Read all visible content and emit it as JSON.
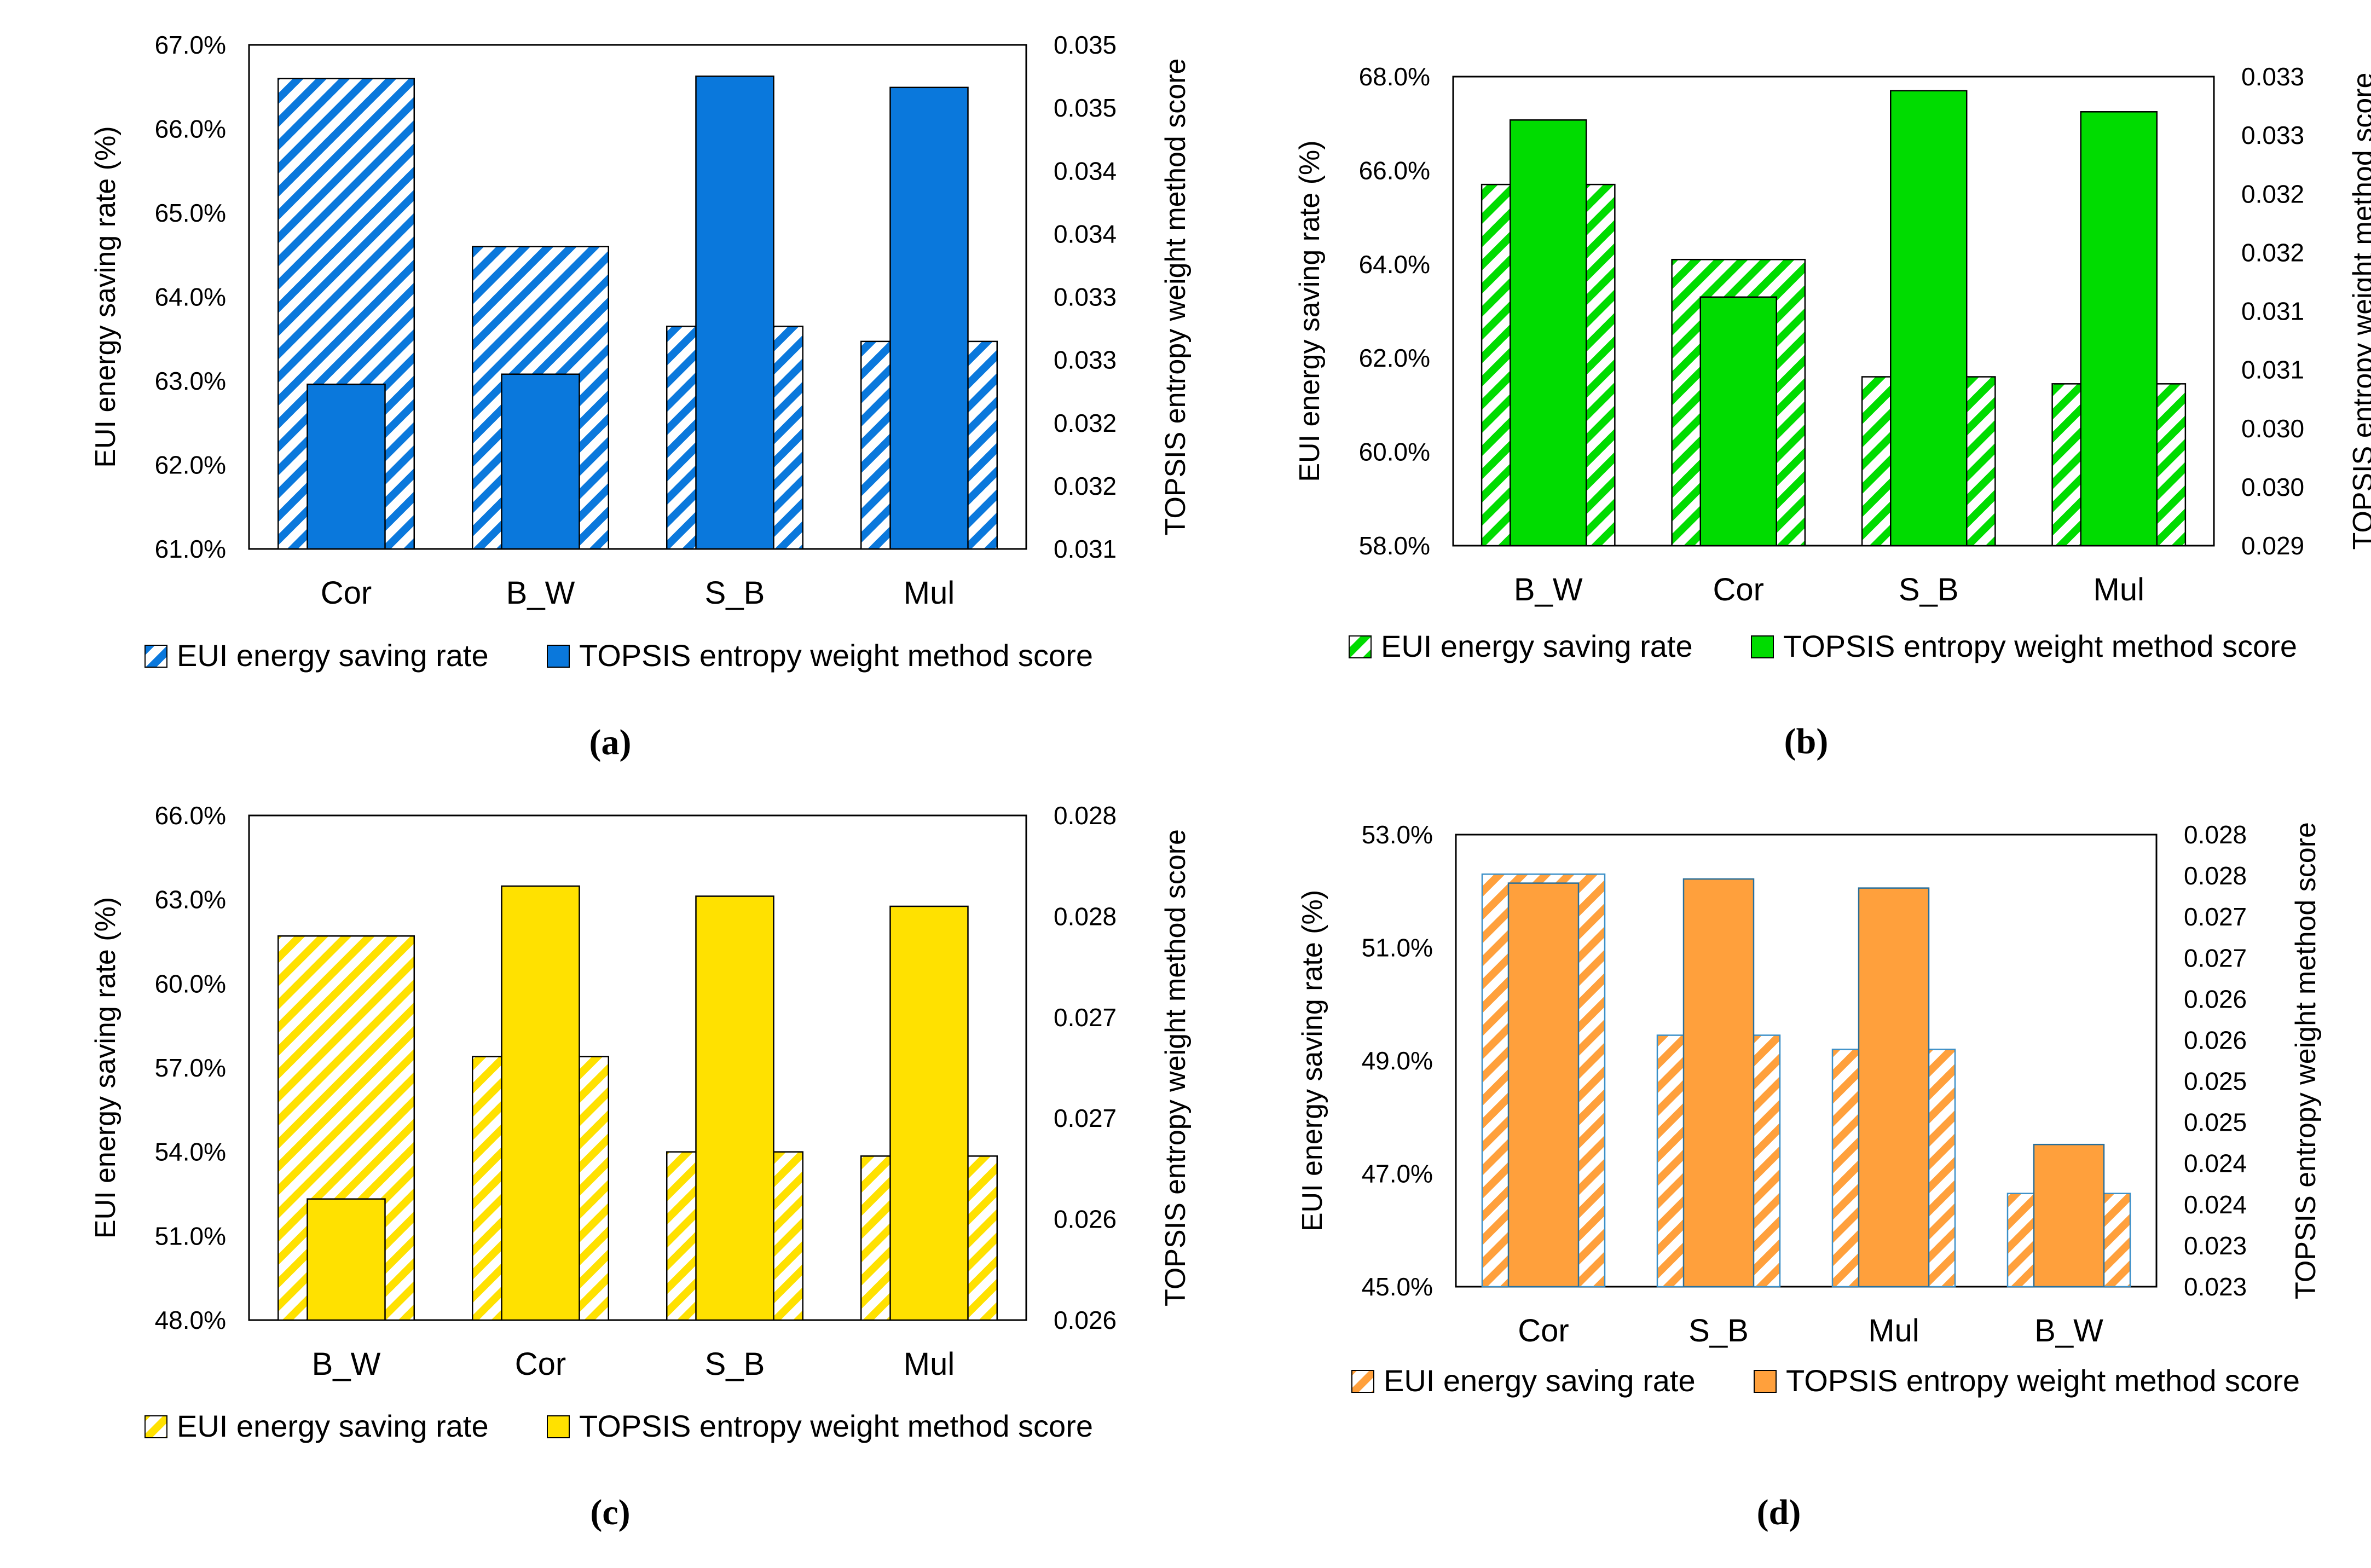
{
  "chart_data": [
    {
      "type": "bar",
      "panel_label": "(a)",
      "categories": [
        "Cor",
        "B_W",
        "S_B",
        "Mul"
      ],
      "color": "#0a78dc",
      "series": [
        {
          "name": "EUI energy saving rate",
          "axis": "left",
          "style": "hatched",
          "values": [
            66.6,
            64.6,
            63.65,
            63.47
          ]
        },
        {
          "name": "TOPSIS entropy weight method score",
          "axis": "right",
          "style": "solid",
          "values": [
            0.03247,
            0.03256,
            0.03522,
            0.03512
          ]
        }
      ],
      "ylabel": "EUI energy saving rate (%)",
      "y2label": "TOPSIS entropy weight method score",
      "ylim": [
        61,
        67
      ],
      "yticks": [
        "61.0%",
        "62.0%",
        "63.0%",
        "64.0%",
        "65.0%",
        "66.0%",
        "67.0%"
      ],
      "y2lim": [
        0.031,
        0.0355
      ],
      "y2ticks": [
        "0.031",
        "0.032",
        "0.032",
        "0.033",
        "0.033",
        "0.034",
        "0.034",
        "0.035",
        "0.035"
      ],
      "legend": "bottom"
    },
    {
      "type": "bar",
      "panel_label": "(b)",
      "categories": [
        "B_W",
        "Cor",
        "S_B",
        "Mul"
      ],
      "color": "#00dc00",
      "series": [
        {
          "name": "EUI energy saving rate",
          "axis": "left",
          "style": "hatched",
          "values": [
            65.7,
            64.1,
            61.6,
            61.45
          ]
        },
        {
          "name": "TOPSIS entropy weight method score",
          "axis": "right",
          "style": "solid",
          "values": [
            0.03263,
            0.03112,
            0.03288,
            0.0327
          ]
        }
      ],
      "ylabel": "EUI energy saving rate (%)",
      "y2label": "TOPSIS entropy weight method score",
      "ylim": [
        58,
        68
      ],
      "yticks": [
        "58.0%",
        "60.0%",
        "62.0%",
        "64.0%",
        "66.0%",
        "68.0%"
      ],
      "y2lim": [
        0.029,
        0.033
      ],
      "y2ticks": [
        "0.029",
        "0.030",
        "0.030",
        "0.031",
        "0.031",
        "0.032",
        "0.032",
        "0.033",
        "0.033"
      ],
      "legend": "bottom"
    },
    {
      "type": "bar",
      "panel_label": "(c)",
      "categories": [
        "B_W",
        "Cor",
        "S_B",
        "Mul"
      ],
      "color": "#ffe100",
      "series": [
        {
          "name": "EUI energy saving rate",
          "axis": "left",
          "style": "hatched",
          "values": [
            61.7,
            57.4,
            54.0,
            53.85
          ]
        },
        {
          "name": "TOPSIS entropy weight method score",
          "axis": "right",
          "style": "solid",
          "values": [
            0.0264,
            0.02795,
            0.0279,
            0.02785
          ]
        }
      ],
      "ylabel": "EUI energy saving rate (%)",
      "y2label": "TOPSIS entropy weight method score",
      "ylim": [
        48,
        66
      ],
      "yticks": [
        "48.0%",
        "51.0%",
        "54.0%",
        "57.0%",
        "60.0%",
        "63.0%",
        "66.0%"
      ],
      "y2lim": [
        0.0258,
        0.0283
      ],
      "y2ticks": [
        "0.026",
        "0.026",
        "0.027",
        "0.027",
        "0.028",
        "0.028"
      ],
      "legend": "bottom"
    },
    {
      "type": "bar",
      "panel_label": "(d)",
      "categories": [
        "Cor",
        "S_B",
        "Mul",
        "B_W"
      ],
      "color": "#ffa03c",
      "series": [
        {
          "name": "EUI energy saving rate",
          "axis": "left",
          "style": "hatched",
          "values": [
            52.3,
            49.45,
            49.2,
            46.65
          ]
        },
        {
          "name": "TOPSIS entropy weight method score",
          "axis": "right",
          "style": "solid",
          "values": [
            0.02791,
            0.02796,
            0.02785,
            0.02473
          ]
        }
      ],
      "ylabel": "EUI energy saving rate (%)",
      "y2label": "TOPSIS entropy weight method score",
      "ylim": [
        45,
        53
      ],
      "yticks": [
        "45.0%",
        "47.0%",
        "49.0%",
        "51.0%",
        "53.0%"
      ],
      "y2lim": [
        0.023,
        0.0285
      ],
      "y2ticks": [
        "0.023",
        "0.023",
        "0.024",
        "0.024",
        "0.025",
        "0.025",
        "0.026",
        "0.026",
        "0.027",
        "0.027",
        "0.028",
        "0.028"
      ],
      "legend": "bottom"
    }
  ]
}
